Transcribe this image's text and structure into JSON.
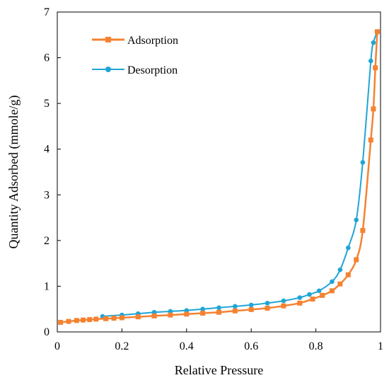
{
  "chart_data": {
    "type": "line",
    "title": "",
    "xlabel": "Relative Pressure",
    "ylabel": "Quantity Adsorbed (mmole/g)",
    "xlim": [
      0,
      1
    ],
    "ylim": [
      0,
      7
    ],
    "xticks": [
      0,
      0.2,
      0.4,
      0.6,
      0.8,
      1
    ],
    "xtick_labels": [
      "0",
      "0.2",
      "0.4",
      "0.6",
      "0.8",
      "1"
    ],
    "yticks": [
      0,
      1,
      2,
      3,
      4,
      5,
      6,
      7
    ],
    "ytick_labels": [
      "0",
      "1",
      "2",
      "3",
      "4",
      "5",
      "6",
      "7"
    ],
    "grid": false,
    "legend_position": "top-left",
    "series": [
      {
        "name": "Adsorption",
        "color": "#f58231",
        "marker": "square",
        "x": [
          0.01,
          0.035,
          0.06,
          0.08,
          0.1,
          0.12,
          0.15,
          0.175,
          0.2,
          0.25,
          0.3,
          0.35,
          0.4,
          0.45,
          0.5,
          0.55,
          0.6,
          0.65,
          0.7,
          0.75,
          0.79,
          0.82,
          0.85,
          0.875,
          0.9,
          0.925,
          0.945,
          0.97,
          0.978,
          0.984,
          0.99
        ],
        "y": [
          0.21,
          0.23,
          0.25,
          0.26,
          0.27,
          0.28,
          0.29,
          0.3,
          0.31,
          0.33,
          0.35,
          0.37,
          0.39,
          0.41,
          0.43,
          0.46,
          0.49,
          0.52,
          0.57,
          0.63,
          0.72,
          0.8,
          0.9,
          1.05,
          1.25,
          1.58,
          2.22,
          4.2,
          4.88,
          5.78,
          6.57
        ]
      },
      {
        "name": "Desorption",
        "color": "#1fa5d6",
        "marker": "circle",
        "x": [
          0.99,
          0.978,
          0.97,
          0.945,
          0.925,
          0.9,
          0.875,
          0.85,
          0.81,
          0.78,
          0.75,
          0.7,
          0.65,
          0.6,
          0.55,
          0.5,
          0.45,
          0.4,
          0.35,
          0.3,
          0.25,
          0.2,
          0.14
        ],
        "y": [
          6.57,
          6.33,
          5.93,
          3.71,
          2.45,
          1.84,
          1.36,
          1.1,
          0.9,
          0.82,
          0.75,
          0.68,
          0.63,
          0.59,
          0.56,
          0.53,
          0.5,
          0.47,
          0.45,
          0.43,
          0.4,
          0.37,
          0.34
        ]
      }
    ]
  }
}
